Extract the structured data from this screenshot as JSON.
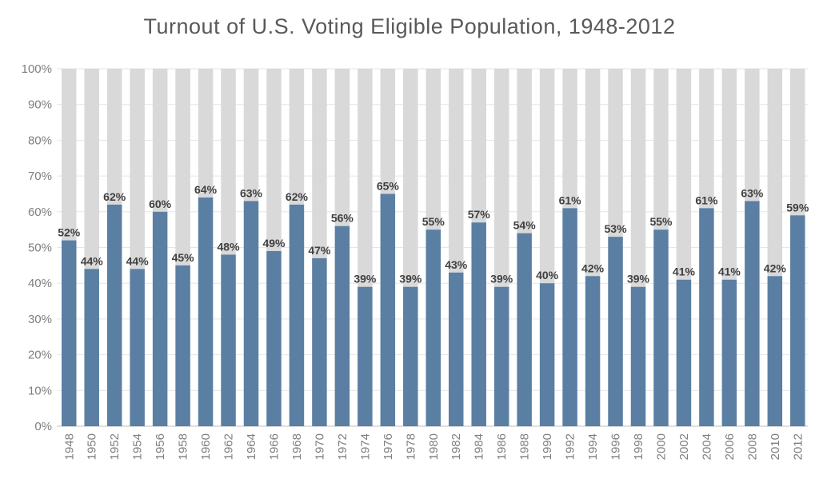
{
  "chart_data": {
    "type": "bar",
    "title": "Turnout of U.S. Voting Eligible Population, 1948-2012",
    "xlabel": "",
    "ylabel": "",
    "ylim": [
      0,
      100
    ],
    "yticks": [
      "0%",
      "10%",
      "20%",
      "30%",
      "40%",
      "50%",
      "60%",
      "70%",
      "80%",
      "90%",
      "100%"
    ],
    "grid": true,
    "stacked_to_100": true,
    "categories": [
      "1948",
      "1950",
      "1952",
      "1954",
      "1956",
      "1958",
      "1960",
      "1962",
      "1964",
      "1966",
      "1968",
      "1970",
      "1972",
      "1974",
      "1976",
      "1978",
      "1980",
      "1982",
      "1984",
      "1986",
      "1988",
      "1990",
      "1992",
      "1994",
      "1996",
      "1998",
      "2000",
      "2002",
      "2004",
      "2006",
      "2008",
      "2010",
      "2012"
    ],
    "values": [
      52,
      44,
      62,
      44,
      60,
      45,
      64,
      48,
      63,
      49,
      62,
      47,
      56,
      39,
      65,
      39,
      55,
      43,
      57,
      39,
      54,
      40,
      61,
      42,
      53,
      39,
      55,
      41,
      61,
      41,
      63,
      42,
      59
    ],
    "data_labels": [
      "52%",
      "44%",
      "62%",
      "44%",
      "60%",
      "45%",
      "64%",
      "48%",
      "63%",
      "49%",
      "62%",
      "47%",
      "56%",
      "39%",
      "65%",
      "39%",
      "55%",
      "43%",
      "57%",
      "39%",
      "54%",
      "40%",
      "61%",
      "42%",
      "53%",
      "39%",
      "55%",
      "41%",
      "61%",
      "41%",
      "63%",
      "42%",
      "59%"
    ],
    "colors": {
      "turnout": "#5b7fa3",
      "remainder": "#d9d9d9",
      "grid": "#e6e6e6"
    }
  }
}
